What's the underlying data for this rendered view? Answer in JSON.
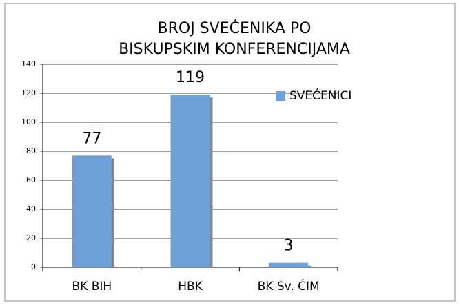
{
  "chart_data": {
    "type": "bar",
    "title": [
      "BROJ SVEĆENIKA PO",
      "BISKUPSKIM KONFERENCIJAMA"
    ],
    "categories": [
      "BK BIH",
      "HBK",
      "BK Sv. ĆIM"
    ],
    "series": [
      {
        "name": "SVEĆENICI",
        "color": "#6fa0d8",
        "values": [
          77,
          119,
          3
        ]
      }
    ],
    "ylim": [
      0,
      140
    ],
    "yticks": [
      0,
      20,
      40,
      60,
      80,
      100,
      120,
      140
    ],
    "grid": true,
    "legend": "right"
  }
}
